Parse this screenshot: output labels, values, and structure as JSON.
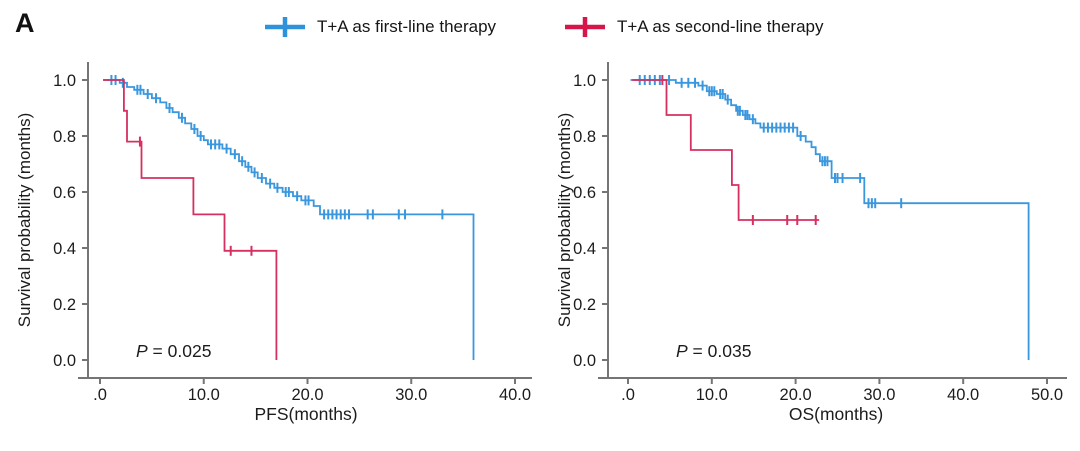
{
  "panel_label": "A",
  "legend": {
    "items": [
      {
        "label": "T+A as first-line therapy",
        "color": "#2F93DC",
        "marker": "plus"
      },
      {
        "label": "T+A as second-line therapy",
        "color": "#D6164B",
        "marker": "plus"
      }
    ]
  },
  "chart_data": [
    {
      "type": "line",
      "subtype": "kaplan_meier_step",
      "title": "",
      "xlabel": "PFS(months)",
      "ylabel": "Survival probability (months)",
      "annotation": "P = 0.025",
      "xlim": [
        0,
        40
      ],
      "ylim": [
        0,
        1.0
      ],
      "xticks": [
        0,
        10,
        20,
        30,
        40
      ],
      "xtick_labels": [
        ".0",
        "10.0",
        "20.0",
        "30.0",
        "40.0"
      ],
      "yticks": [
        0,
        0.2,
        0.4,
        0.6,
        0.8,
        1.0
      ],
      "ytick_labels": [
        "0.0",
        "0.2",
        "0.4",
        "0.6",
        "0.8",
        "1.0"
      ],
      "grid": false,
      "legend_position": "top",
      "series": [
        {
          "name": "T+A as first-line therapy",
          "color": "#3A97DE",
          "points": [
            [
              0.3,
              1.0
            ],
            [
              1.9,
              0.99
            ],
            [
              2.6,
              0.975
            ],
            [
              3.3,
              0.965
            ],
            [
              4.2,
              0.95
            ],
            [
              5.0,
              0.935
            ],
            [
              5.8,
              0.92
            ],
            [
              6.4,
              0.9
            ],
            [
              7.0,
              0.885
            ],
            [
              7.6,
              0.865
            ],
            [
              8.2,
              0.845
            ],
            [
              8.8,
              0.825
            ],
            [
              9.4,
              0.8
            ],
            [
              10.0,
              0.785
            ],
            [
              10.4,
              0.77
            ],
            [
              11.8,
              0.755
            ],
            [
              12.6,
              0.735
            ],
            [
              13.4,
              0.71
            ],
            [
              14.0,
              0.69
            ],
            [
              14.6,
              0.67
            ],
            [
              15.2,
              0.65
            ],
            [
              16.0,
              0.63
            ],
            [
              16.8,
              0.615
            ],
            [
              17.6,
              0.6
            ],
            [
              18.6,
              0.585
            ],
            [
              19.4,
              0.57
            ],
            [
              20.6,
              0.55
            ],
            [
              21.2,
              0.52
            ],
            [
              36.0,
              0.0
            ]
          ],
          "censor_marks": [
            [
              1.1,
              1.0
            ],
            [
              1.5,
              1.0
            ],
            [
              2.2,
              0.99
            ],
            [
              3.6,
              0.965
            ],
            [
              3.9,
              0.965
            ],
            [
              4.6,
              0.95
            ],
            [
              5.4,
              0.935
            ],
            [
              6.7,
              0.9
            ],
            [
              7.9,
              0.865
            ],
            [
              9.1,
              0.825
            ],
            [
              9.7,
              0.8
            ],
            [
              10.7,
              0.77
            ],
            [
              11.1,
              0.77
            ],
            [
              11.5,
              0.77
            ],
            [
              12.2,
              0.755
            ],
            [
              13.0,
              0.735
            ],
            [
              13.7,
              0.71
            ],
            [
              14.3,
              0.69
            ],
            [
              14.9,
              0.67
            ],
            [
              15.6,
              0.65
            ],
            [
              16.4,
              0.63
            ],
            [
              17.1,
              0.615
            ],
            [
              17.9,
              0.6
            ],
            [
              18.2,
              0.6
            ],
            [
              19.0,
              0.585
            ],
            [
              19.8,
              0.57
            ],
            [
              20.1,
              0.57
            ],
            [
              21.6,
              0.52
            ],
            [
              22.0,
              0.52
            ],
            [
              22.4,
              0.52
            ],
            [
              22.8,
              0.52
            ],
            [
              23.2,
              0.52
            ],
            [
              23.6,
              0.52
            ],
            [
              24.0,
              0.52
            ],
            [
              25.8,
              0.52
            ],
            [
              26.3,
              0.52
            ],
            [
              28.8,
              0.52
            ],
            [
              29.4,
              0.52
            ],
            [
              33.0,
              0.52
            ]
          ]
        },
        {
          "name": "T+A as second-line therapy",
          "color": "#D63060",
          "points": [
            [
              0.3,
              1.0
            ],
            [
              2.3,
              0.89
            ],
            [
              2.6,
              0.78
            ],
            [
              4.0,
              0.65
            ],
            [
              9.0,
              0.52
            ],
            [
              12.0,
              0.39
            ],
            [
              17.0,
              0.0
            ]
          ],
          "censor_marks": [
            [
              3.85,
              0.78
            ],
            [
              12.6,
              0.39
            ],
            [
              14.6,
              0.39
            ]
          ]
        }
      ]
    },
    {
      "type": "line",
      "subtype": "kaplan_meier_step",
      "title": "",
      "xlabel": "OS(months)",
      "ylabel": "Survival probability (months)",
      "annotation": "P = 0.035",
      "xlim": [
        0,
        50
      ],
      "ylim": [
        0,
        1.0
      ],
      "xticks": [
        0,
        10,
        20,
        30,
        40,
        50
      ],
      "xtick_labels": [
        ".0",
        "10.0",
        "20.0",
        "30.0",
        "40.0",
        "50.0"
      ],
      "yticks": [
        0,
        0.2,
        0.4,
        0.6,
        0.8,
        1.0
      ],
      "ytick_labels": [
        "0.0",
        "0.2",
        "0.4",
        "0.6",
        "0.8",
        "1.0"
      ],
      "grid": false,
      "legend_position": "top",
      "series": [
        {
          "name": "T+A as first-line therapy",
          "color": "#3A97DE",
          "points": [
            [
              0.3,
              1.0
            ],
            [
              5.7,
              0.99
            ],
            [
              8.4,
              0.98
            ],
            [
              9.4,
              0.96
            ],
            [
              10.6,
              0.95
            ],
            [
              11.6,
              0.93
            ],
            [
              12.3,
              0.91
            ],
            [
              12.9,
              0.89
            ],
            [
              13.7,
              0.875
            ],
            [
              14.5,
              0.86
            ],
            [
              15.2,
              0.845
            ],
            [
              15.8,
              0.83
            ],
            [
              20.2,
              0.8
            ],
            [
              21.2,
              0.78
            ],
            [
              21.9,
              0.76
            ],
            [
              22.4,
              0.735
            ],
            [
              22.9,
              0.71
            ],
            [
              24.3,
              0.65
            ],
            [
              28.2,
              0.56
            ],
            [
              47.8,
              0.0
            ]
          ],
          "censor_marks": [
            [
              1.4,
              1.0
            ],
            [
              2.0,
              1.0
            ],
            [
              2.6,
              1.0
            ],
            [
              3.2,
              1.0
            ],
            [
              3.8,
              1.0
            ],
            [
              4.9,
              1.0
            ],
            [
              6.4,
              0.99
            ],
            [
              7.2,
              0.99
            ],
            [
              8.0,
              0.99
            ],
            [
              8.9,
              0.98
            ],
            [
              9.7,
              0.96
            ],
            [
              10.0,
              0.96
            ],
            [
              10.3,
              0.96
            ],
            [
              11.0,
              0.95
            ],
            [
              11.3,
              0.95
            ],
            [
              11.9,
              0.93
            ],
            [
              13.1,
              0.89
            ],
            [
              13.35,
              0.89
            ],
            [
              14.0,
              0.875
            ],
            [
              14.25,
              0.875
            ],
            [
              14.9,
              0.86
            ],
            [
              16.2,
              0.83
            ],
            [
              16.7,
              0.83
            ],
            [
              17.2,
              0.83
            ],
            [
              17.7,
              0.83
            ],
            [
              18.2,
              0.83
            ],
            [
              18.7,
              0.83
            ],
            [
              19.2,
              0.83
            ],
            [
              19.7,
              0.83
            ],
            [
              20.6,
              0.8
            ],
            [
              23.2,
              0.71
            ],
            [
              23.5,
              0.71
            ],
            [
              23.8,
              0.71
            ],
            [
              24.7,
              0.65
            ],
            [
              25.0,
              0.65
            ],
            [
              25.6,
              0.65
            ],
            [
              27.7,
              0.65
            ],
            [
              28.7,
              0.56
            ],
            [
              29.1,
              0.56
            ],
            [
              29.5,
              0.56
            ],
            [
              32.6,
              0.56
            ]
          ]
        },
        {
          "name": "T+A as second-line therapy",
          "color": "#D63060",
          "points": [
            [
              0.5,
              1.0
            ],
            [
              4.6,
              0.875
            ],
            [
              7.5,
              0.75
            ],
            [
              12.4,
              0.625
            ],
            [
              13.2,
              0.5
            ],
            [
              22.8,
              0.5
            ]
          ],
          "censor_marks": [
            [
              4.1,
              1.0
            ],
            [
              14.9,
              0.5
            ],
            [
              19.0,
              0.5
            ],
            [
              20.2,
              0.5
            ],
            [
              22.4,
              0.5
            ]
          ]
        }
      ]
    }
  ]
}
